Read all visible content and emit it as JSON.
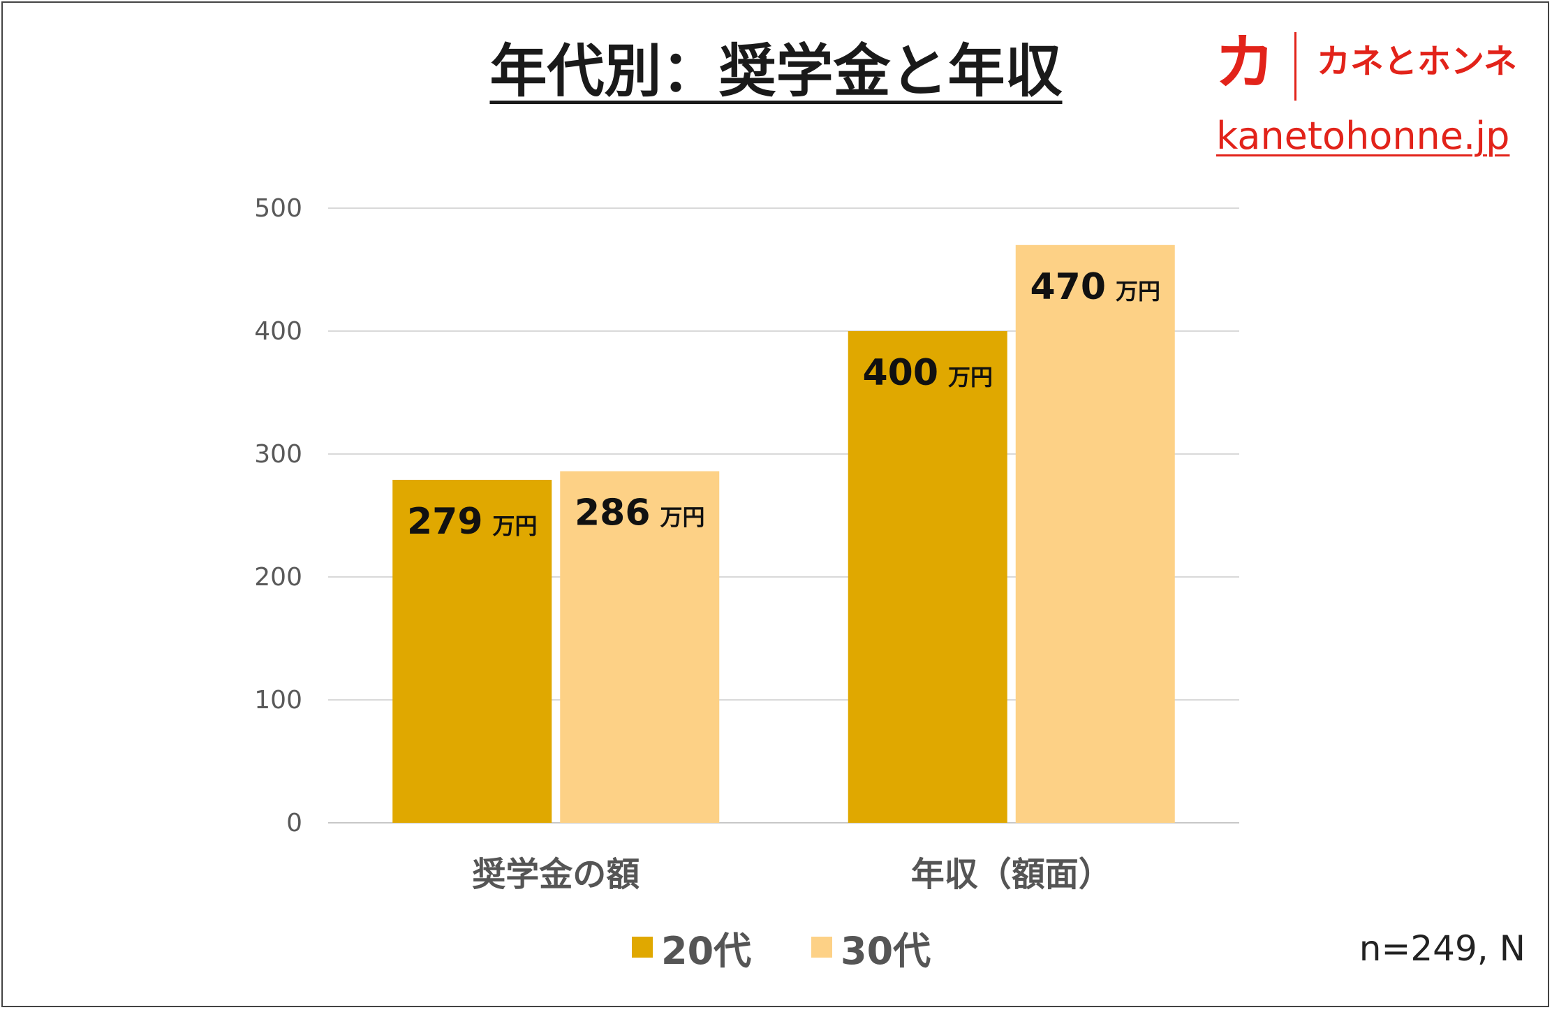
{
  "brand": {
    "mark": "カ",
    "name": "カネとホンネ",
    "url": "kanetohonne.jp",
    "color": "#e2231a"
  },
  "note": "n=249, N",
  "chart_data": {
    "type": "bar",
    "title": "年代別：奨学金と年収",
    "categories": [
      "奨学金の額",
      "年収（額面）"
    ],
    "series": [
      {
        "name": "20代",
        "color": "#e0a800",
        "values": [
          279,
          400
        ],
        "labels": [
          "279",
          "400"
        ]
      },
      {
        "name": "30代",
        "color": "#fdd186",
        "values": [
          286,
          470
        ],
        "labels": [
          "286",
          "470"
        ]
      }
    ],
    "value_unit": "万円",
    "ylim": [
      0,
      500
    ],
    "yticks": [
      0,
      100,
      200,
      300,
      400,
      500
    ],
    "grid": true,
    "legend_position": "bottom"
  }
}
